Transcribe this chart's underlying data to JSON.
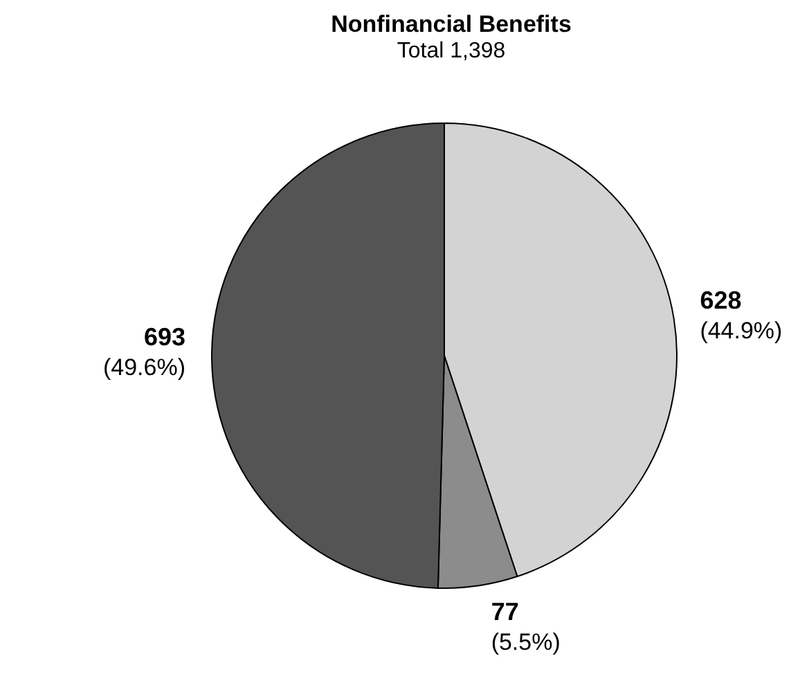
{
  "chart_data": {
    "type": "pie",
    "title": "Nonfinancial Benefits",
    "subtitle": "Total 1,398",
    "categories": [
      null,
      null,
      null
    ],
    "values": [
      628,
      77,
      693
    ],
    "colors": [
      "#d3d3d3",
      "#8c8c8c",
      "#545454"
    ],
    "value_labels": [
      "628\n(44.9%)",
      "77\n(5.5%)",
      "693\n(49.6%)"
    ]
  }
}
